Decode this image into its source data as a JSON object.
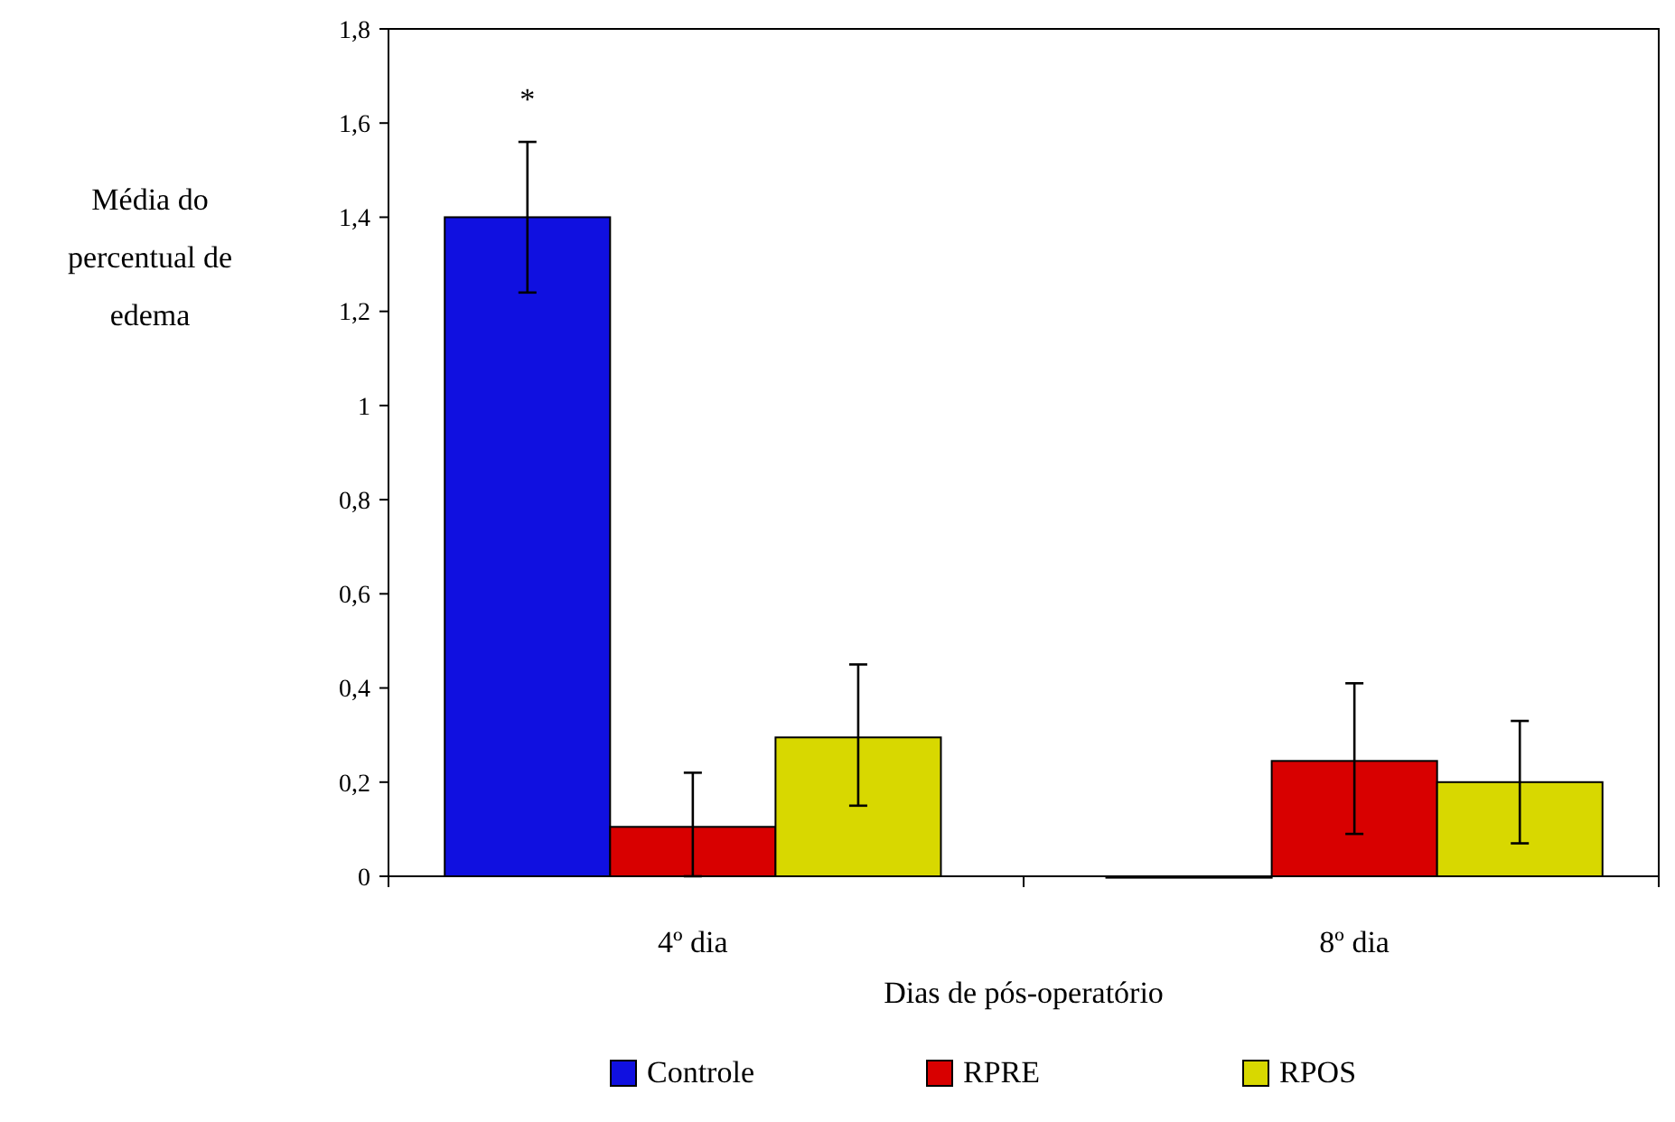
{
  "chart_data": {
    "type": "bar",
    "xlabel": "Dias de pós-operatório",
    "ylabel": "Média do percentual de edema",
    "categories": [
      "4º dia",
      "8º dia"
    ],
    "series": [
      {
        "name": "Controle",
        "color": "#1010e0",
        "values": [
          1.4,
          0
        ],
        "errors": [
          [
            1.24,
            1.56
          ],
          null
        ]
      },
      {
        "name": "RPRE",
        "color": "#d80000",
        "values": [
          0.105,
          0.245
        ],
        "errors": [
          [
            0,
            0.22
          ],
          [
            0.09,
            0.41
          ]
        ]
      },
      {
        "name": "RPOS",
        "color": "#d8d800",
        "values": [
          0.295,
          0.2
        ],
        "errors": [
          [
            0.15,
            0.45
          ],
          [
            0.07,
            0.33
          ]
        ]
      }
    ],
    "ylim": [
      0,
      1.8
    ],
    "yticks": [
      0,
      {
        "value": 0.2,
        "label": "0,2"
      },
      {
        "value": 0.4,
        "label": "0,4"
      },
      {
        "value": 0.6,
        "label": "0,6"
      },
      {
        "value": 0.8,
        "label": "0,8"
      },
      1,
      {
        "value": 1.2,
        "label": "1,2"
      },
      {
        "value": 1.4,
        "label": "1,4"
      },
      {
        "value": 1.6,
        "label": "1,6"
      },
      {
        "value": 1.8,
        "label": "1,8"
      }
    ],
    "annotations": [
      "*"
    ],
    "legend": "bottom",
    "grid": false
  }
}
